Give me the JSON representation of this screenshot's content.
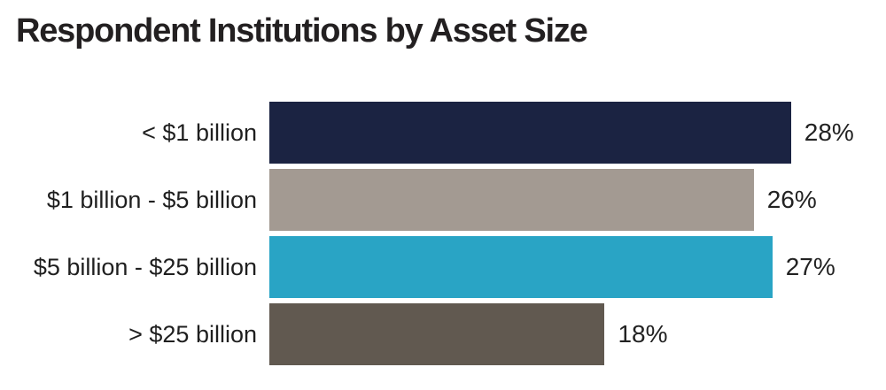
{
  "title": "Respondent Institutions by Asset Size",
  "chart_data": {
    "type": "bar",
    "orientation": "horizontal",
    "title": "Respondent Institutions by Asset Size",
    "categories": [
      "< $1 billion",
      "$1 billion - $5 billion",
      "$5 billion - $25 billion",
      "> $25 billion"
    ],
    "values": [
      28,
      26,
      27,
      18
    ],
    "value_labels": [
      "28%",
      "26%",
      "27%",
      "18%"
    ],
    "bar_colors": [
      "#1b2342",
      "#a39a92",
      "#29a4c5",
      "#615950"
    ],
    "xlabel": "",
    "ylabel": "",
    "xlim": [
      0,
      33.1
    ],
    "grid": false,
    "legend_position": "none",
    "value_label_position": "outside-end",
    "title_color": "#232021",
    "label_color": "#1f1f1f",
    "background": "#ffffff"
  }
}
